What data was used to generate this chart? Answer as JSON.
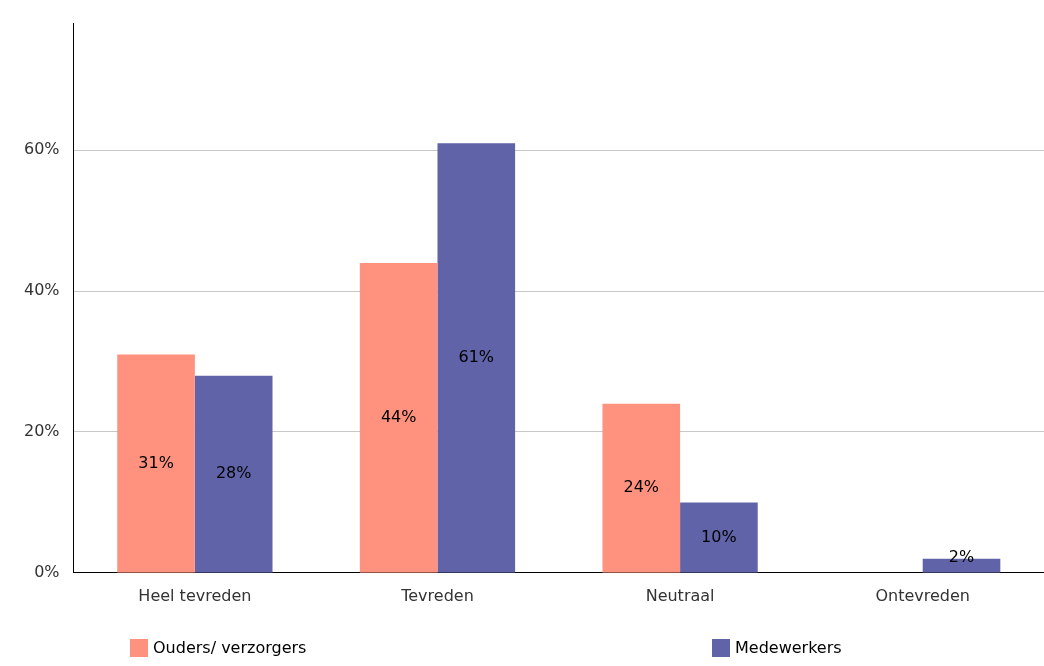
{
  "chart_data": {
    "type": "bar",
    "categories": [
      "Heel tevreden",
      "Tevreden",
      "Neutraal",
      "Ontevreden"
    ],
    "series": [
      {
        "name": "Ouders/ verzorgers",
        "color": "#fe927e",
        "values": [
          31,
          44,
          24,
          null
        ],
        "value_labels": [
          "31%",
          "44%",
          "24%",
          null
        ]
      },
      {
        "name": "Medewerkers",
        "color": "#6063a8",
        "values": [
          28,
          61,
          10,
          2
        ],
        "value_labels": [
          "28%",
          "61%",
          "10%",
          "2%"
        ]
      }
    ],
    "ylim": [
      0,
      78
    ],
    "yticks": [
      {
        "value": 0,
        "label": "0%"
      },
      {
        "value": 20,
        "label": "20%"
      },
      {
        "value": 40,
        "label": "40%"
      },
      {
        "value": 60,
        "label": "60%"
      }
    ],
    "grid": "y",
    "legend": "bottom"
  }
}
